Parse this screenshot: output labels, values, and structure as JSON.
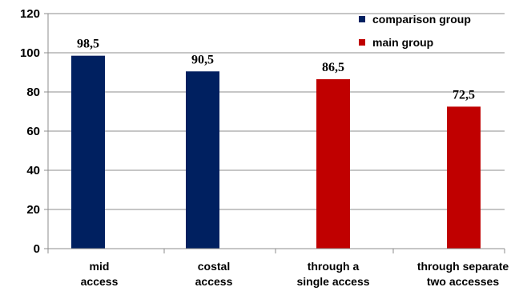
{
  "chart_data": {
    "type": "bar",
    "categories": [
      [
        "mid",
        "access"
      ],
      [
        "costal",
        "access"
      ],
      [
        "through a",
        "single access"
      ],
      [
        "through separate",
        "two accesses"
      ]
    ],
    "values": [
      98.5,
      90.5,
      86.5,
      72.5
    ],
    "data_labels": [
      "98,5",
      "90,5",
      "86,5",
      "72,5"
    ],
    "bar_series": [
      "comparison group",
      "comparison group",
      "main group",
      "main group"
    ],
    "series": [
      {
        "name": "comparison group",
        "color": "#002060"
      },
      {
        "name": "main group",
        "color": "#C00000"
      }
    ],
    "title": "",
    "xlabel": "",
    "ylabel": "",
    "ylim": [
      0,
      120
    ],
    "yticks": [
      0,
      20,
      40,
      60,
      80,
      100,
      120
    ],
    "grid": true,
    "legend_position": "top-right"
  }
}
